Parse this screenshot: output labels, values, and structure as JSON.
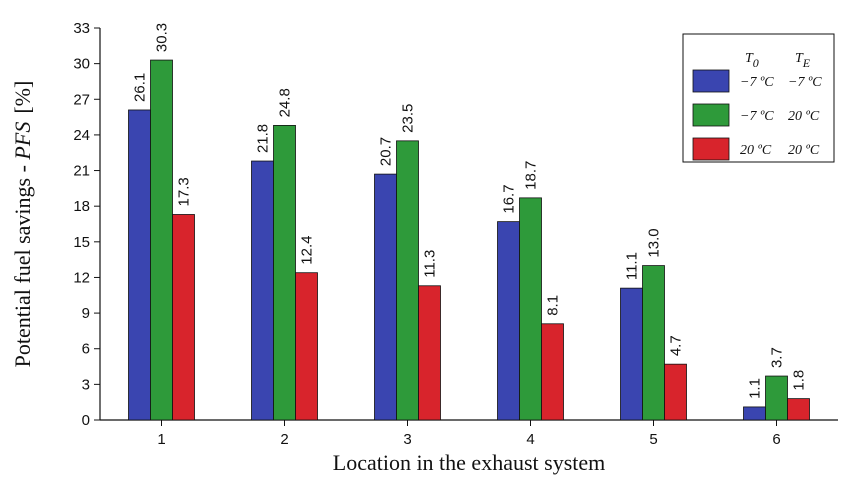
{
  "chart_data": {
    "type": "bar",
    "xlabel": "Location in the exhaust system",
    "ylabel_prefix": "Potential fuel savings - ",
    "ylabel_italic": "PFS",
    "ylabel_unit": "[%]",
    "categories": [
      "1",
      "2",
      "3",
      "4",
      "5",
      "6"
    ],
    "ylim": [
      0,
      33
    ],
    "yticks": [
      0,
      3,
      6,
      9,
      12,
      15,
      18,
      21,
      24,
      27,
      30,
      33
    ],
    "grid": false,
    "legend_position": "top-right",
    "legend_headers": {
      "t0_main": "T",
      "t0_sub": "0",
      "te_main": "T",
      "te_sub": "E"
    },
    "series": [
      {
        "t0": "−7 ºC",
        "te": "−7 ºC",
        "color": "#3a45b0",
        "values": [
          26.1,
          21.8,
          20.7,
          16.7,
          11.1,
          1.1
        ],
        "labels": [
          "26.1",
          "21.8",
          "20.7",
          "16.7",
          "11.1",
          "1.1"
        ]
      },
      {
        "t0": "−7 ºC",
        "te": "20 ºC",
        "color": "#2e9a3a",
        "values": [
          30.3,
          24.8,
          23.5,
          18.7,
          13.0,
          3.7
        ],
        "labels": [
          "30.3",
          "24.8",
          "23.5",
          "18.7",
          "13.0",
          "3.7"
        ]
      },
      {
        "t0": "20 ºC",
        "te": "20 ºC",
        "color": "#d8242c",
        "values": [
          17.3,
          12.4,
          11.3,
          8.1,
          4.7,
          1.8
        ],
        "labels": [
          "17.3",
          "12.4",
          "11.3",
          "8.1",
          "4.7",
          "1.8"
        ]
      }
    ]
  }
}
